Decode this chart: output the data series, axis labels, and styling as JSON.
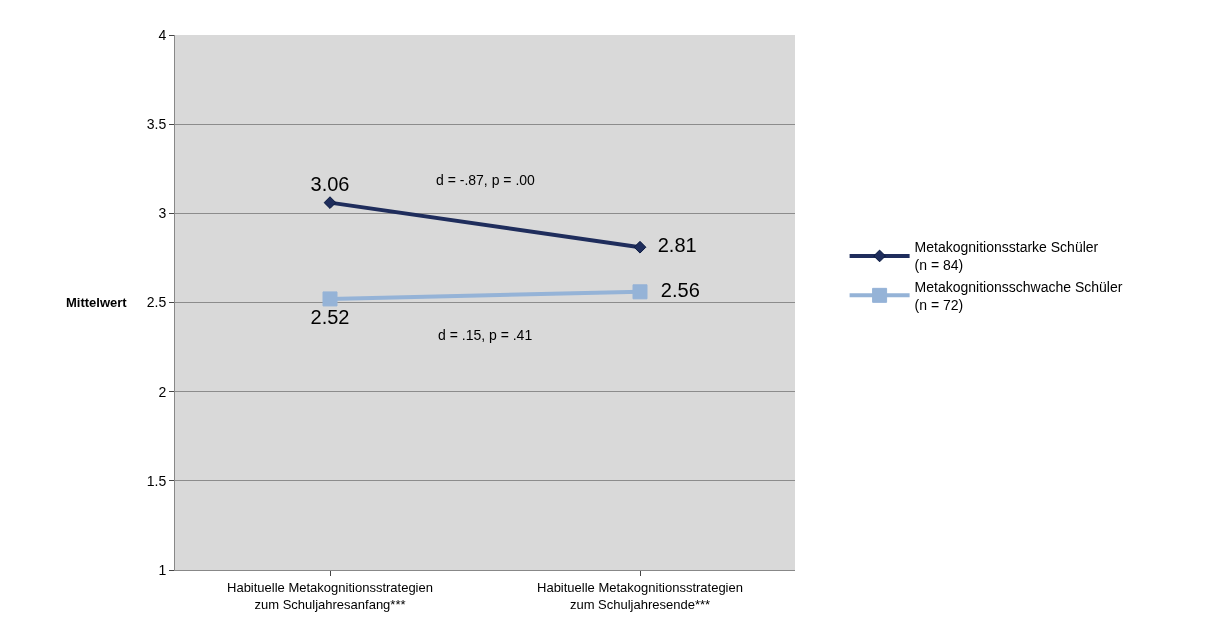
{
  "chart_data": {
    "type": "line",
    "categories": [
      "Habituelle Metakognitionsstrategien zum Schuljahresanfang***",
      "Habituelle Metakognitionsstrategien zum Schuljahresende***"
    ],
    "series": [
      {
        "name": "Metakognitionsstarke Schüler (n = 84)",
        "color": "#1f2d5c",
        "marker": "diamond",
        "values": [
          3.06,
          2.81
        ]
      },
      {
        "name": "Metakognitionsschwache Schüler (n = 72)",
        "color": "#95b3d7",
        "marker": "square",
        "values": [
          2.52,
          2.56
        ]
      }
    ],
    "ylabel": "Mittelwert",
    "ylim": [
      1,
      4
    ],
    "yticks": [
      1,
      1.5,
      2,
      2.5,
      3,
      3.5,
      4
    ],
    "grid": "y",
    "legend": "right",
    "data_labels": true,
    "line_style": "solid",
    "annotations": [
      "d = -.87, p = .00",
      "d = .15, p = .41"
    ]
  }
}
